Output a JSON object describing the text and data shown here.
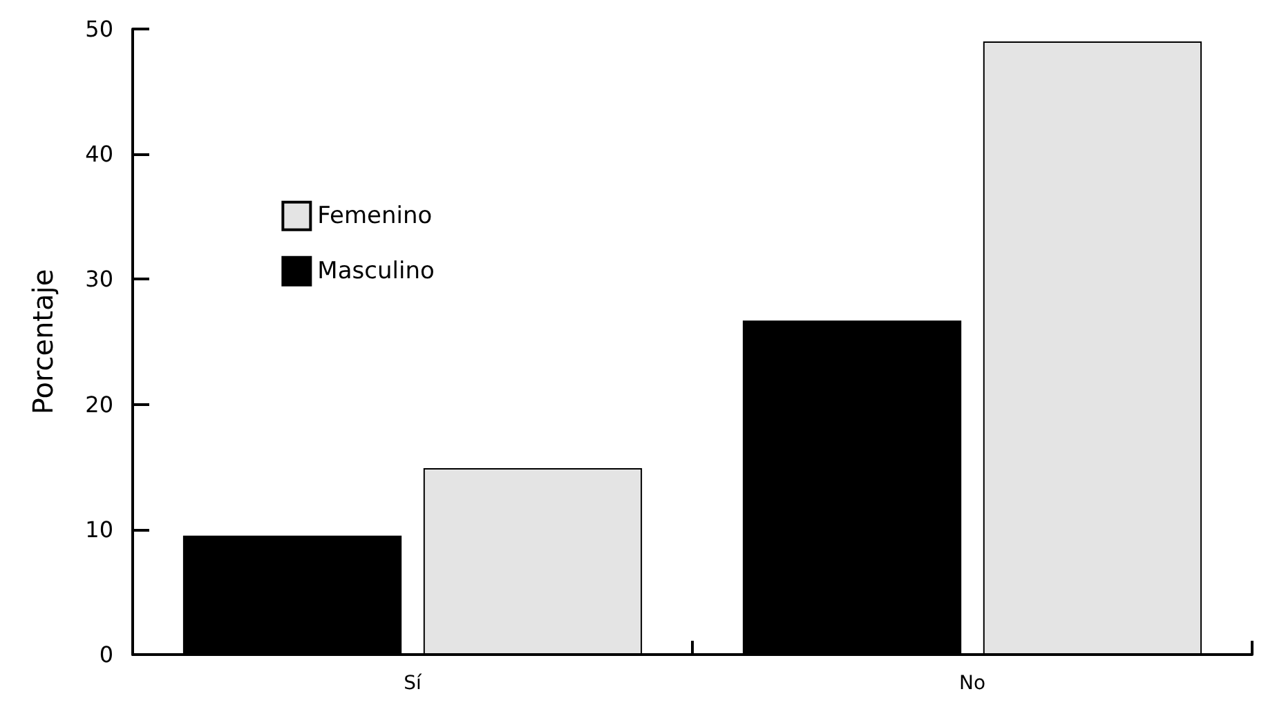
{
  "chart_data": {
    "type": "bar",
    "ylabel": "Porcentaje",
    "categories": [
      "Sí",
      "No"
    ],
    "series": [
      {
        "name": "Masculino",
        "color": "#000000",
        "values": [
          9.5,
          26.7
        ]
      },
      {
        "name": "Femenino",
        "color": "#e4e4e4",
        "values": [
          14.9,
          49.0
        ]
      }
    ],
    "ylim": [
      0,
      50
    ],
    "yticks": [
      0,
      10,
      20,
      30,
      40,
      50
    ],
    "grid": false,
    "legend": "top left"
  }
}
